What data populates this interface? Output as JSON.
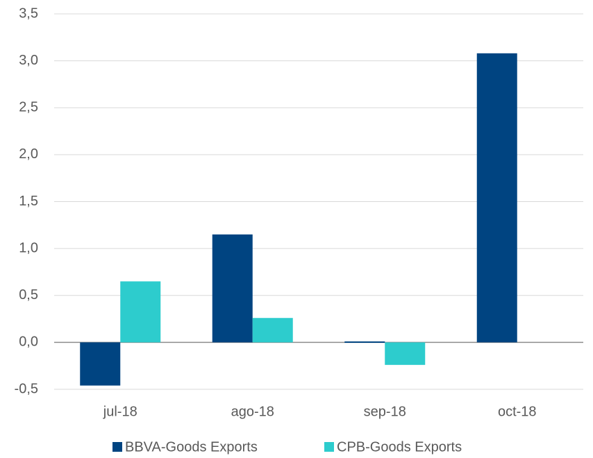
{
  "chart_data": {
    "type": "bar",
    "categories": [
      "jul-18",
      "ago-18",
      "sep-18",
      "oct-18"
    ],
    "series": [
      {
        "name": "BBVA-Goods Exports",
        "color": "#004481",
        "values": [
          -0.46,
          1.15,
          0.01,
          3.08
        ]
      },
      {
        "name": "CPB-Goods Exports",
        "color": "#2dcccd",
        "values": [
          0.65,
          0.26,
          -0.24,
          null
        ]
      }
    ],
    "ylim": [
      -0.5,
      3.5
    ],
    "yticks": [
      {
        "value": -0.5,
        "label": "-0,5"
      },
      {
        "value": 0,
        "label": "0,0"
      },
      {
        "value": 0.5,
        "label": "0,5"
      },
      {
        "value": 1,
        "label": "1,0"
      },
      {
        "value": 1.5,
        "label": "1,5"
      },
      {
        "value": 2,
        "label": "2,0"
      },
      {
        "value": 2.5,
        "label": "2,5"
      },
      {
        "value": 3,
        "label": "3,0"
      },
      {
        "value": 3.5,
        "label": "3,5"
      }
    ],
    "grid": true,
    "legend": "bottom"
  }
}
